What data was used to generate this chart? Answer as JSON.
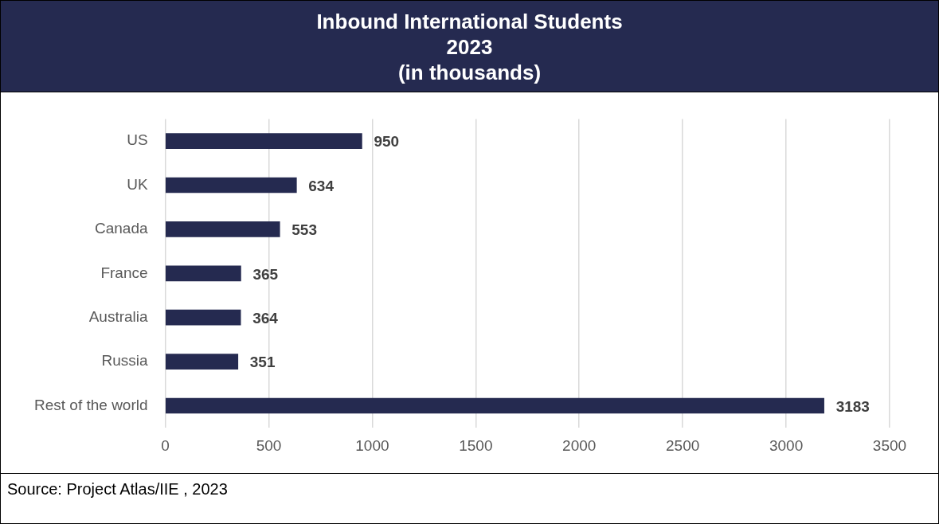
{
  "chart_data": {
    "type": "bar",
    "orientation": "horizontal",
    "title": "Inbound International Students",
    "subtitle": "2023\n(in thousands)",
    "categories": [
      "US",
      "UK",
      "Canada",
      "France",
      "Australia",
      "Russia",
      "Rest of the world"
    ],
    "values": [
      950,
      634,
      553,
      365,
      364,
      351,
      3183
    ],
    "color": "#252a50",
    "xlim": [
      0,
      3500
    ],
    "xticks": [
      0,
      500,
      1000,
      1500,
      2000,
      2500,
      3000,
      3500
    ],
    "grid": "x",
    "data_labels": true,
    "annotations": [
      "Source: Project Atlas/IIE , 2023"
    ]
  }
}
